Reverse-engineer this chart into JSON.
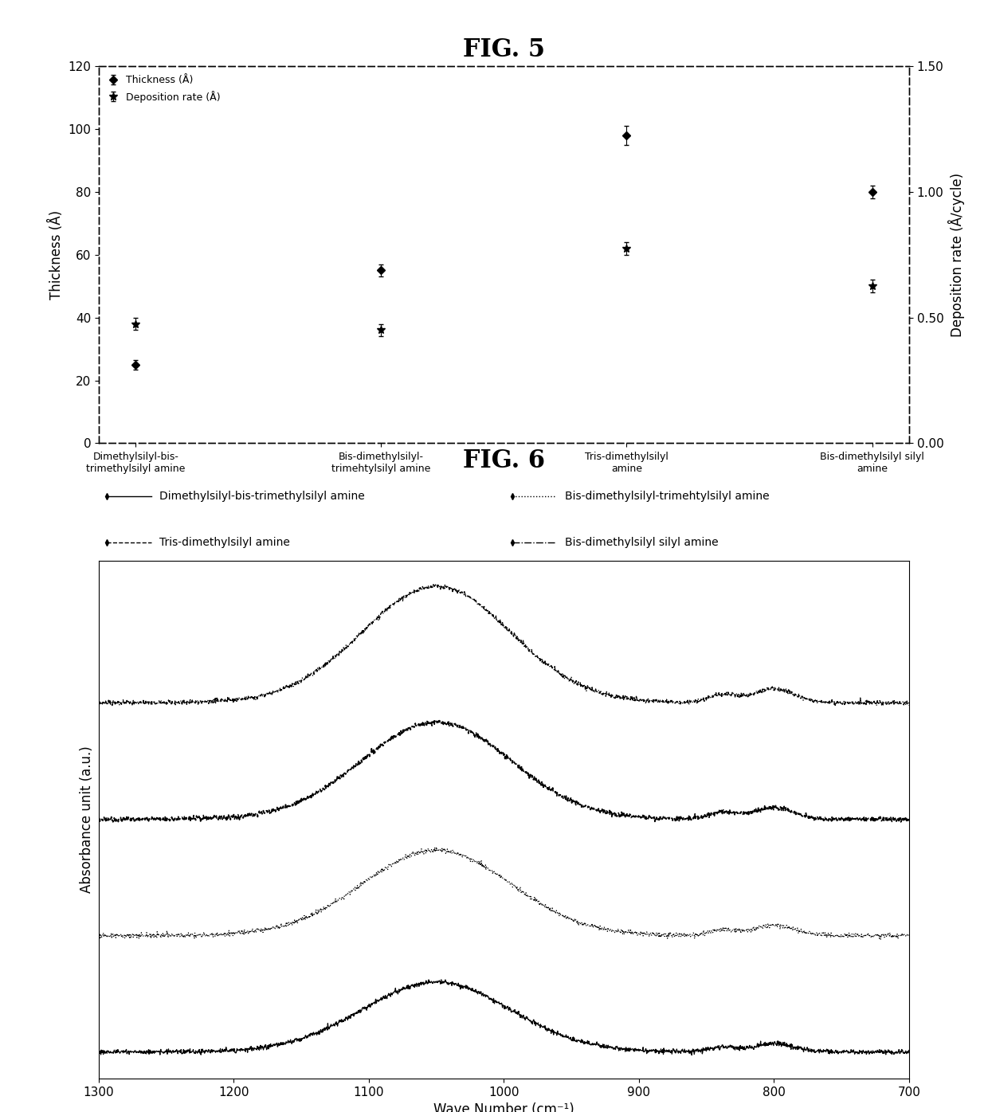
{
  "fig5_title": "FIG. 5",
  "fig6_title": "FIG. 6",
  "fig5": {
    "categories": [
      "Dimethylsilyl-bis-\ntrimethylsilyl amine",
      "Bis-dimethylsilyl-\ntrimehtylsilyl amine",
      "Tris-dimethylsilyl\namine",
      "Bis-dimethylsilyl silyl\namine"
    ],
    "thickness": [
      25,
      55,
      98,
      80
    ],
    "thickness_err": [
      1.5,
      2,
      3,
      2
    ],
    "dep_rate_scaled": [
      38,
      36,
      62,
      50
    ],
    "dep_rate_err_scaled": [
      2,
      2,
      2,
      2
    ],
    "ylabel_left": "Thickness (Å)",
    "ylabel_right": "Deposition rate (Å/cycle)",
    "ylim_left": [
      0,
      120
    ],
    "ylim_right": [
      0.0,
      1.5
    ],
    "yticks_left": [
      0,
      20,
      40,
      60,
      80,
      100,
      120
    ],
    "yticks_right_vals": [
      0.0,
      0.5,
      1.0,
      1.5
    ],
    "yticks_right_labels": [
      "0.00",
      "0.50",
      "1.00",
      "1.50"
    ],
    "legend_thickness": "Thickness (Å)",
    "legend_dep_rate": "Deposition rate (Å)"
  },
  "fig6": {
    "xlabel": "Wave Number (cm⁻¹)",
    "ylabel": "Absorbance unit (a.u.)",
    "xlim": [
      1300,
      700
    ],
    "xticks": [
      1300,
      1200,
      1100,
      1000,
      900,
      800,
      700
    ],
    "legend_labels": [
      "Dimethylsilyl-bis-trimethylsilyl amine",
      "Bis-dimethylsilyl-trimehtylsilyl amine",
      "Tris-dimethylsilyl amine",
      "Bis-dimethylsilyl silyl amine"
    ]
  },
  "background_color": "#ffffff",
  "font_size_title": 22,
  "font_size_label": 12,
  "font_size_tick": 11,
  "font_size_legend": 10
}
